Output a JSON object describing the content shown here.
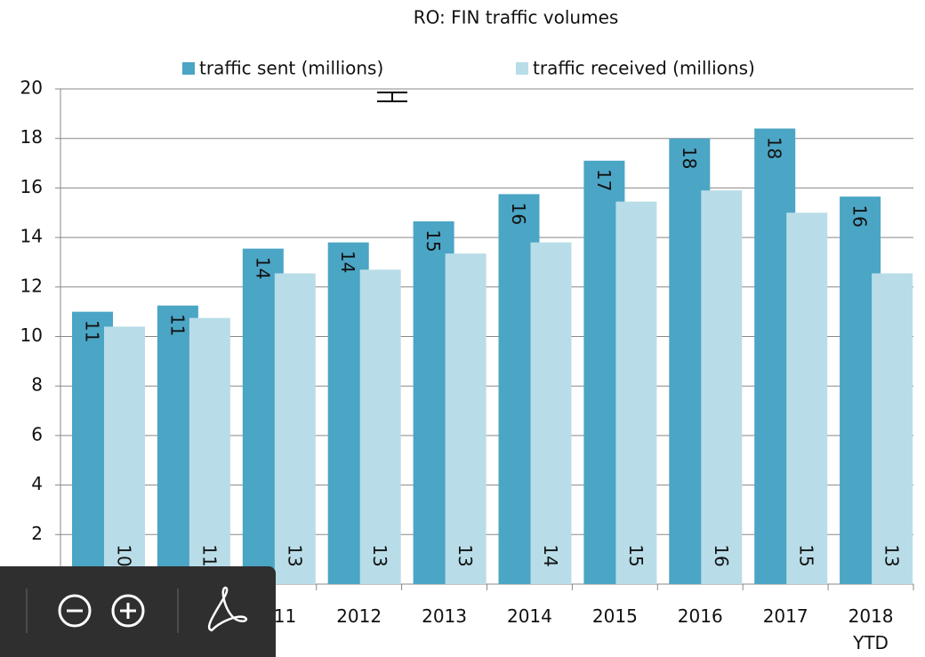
{
  "chart_data": {
    "type": "bar",
    "title": "RO: FIN traffic volumes",
    "categories": [
      null,
      null,
      "2011",
      "2012",
      "2013",
      "2014",
      "2015",
      "2016",
      "2017",
      "2018 YTD"
    ],
    "series": [
      {
        "name": "traffic sent (millions)",
        "color": "#4ba5c5",
        "values": [
          11.0,
          11.25,
          13.55,
          13.8,
          14.65,
          15.75,
          17.1,
          18.0,
          18.4,
          15.65
        ],
        "value_labels": [
          "11",
          "11",
          "14",
          "14",
          "15",
          "16",
          "17",
          "18",
          "18",
          "16"
        ]
      },
      {
        "name": "traffic received (millions)",
        "color": "#b8dde8",
        "values": [
          10.4,
          10.75,
          12.55,
          12.7,
          13.35,
          13.8,
          15.45,
          15.9,
          15.0,
          12.55
        ],
        "value_labels": [
          "10",
          "11",
          "13",
          "13",
          "13",
          "14",
          "15",
          "16",
          "15",
          "13"
        ]
      }
    ],
    "ylim": [
      0,
      20
    ],
    "yticks": [
      2,
      4,
      6,
      8,
      10,
      12,
      14,
      16,
      18,
      20
    ],
    "grid": true,
    "legend": "top"
  }
}
